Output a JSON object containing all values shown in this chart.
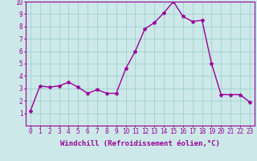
{
  "x": [
    0,
    1,
    2,
    3,
    4,
    5,
    6,
    7,
    8,
    9,
    10,
    11,
    12,
    13,
    14,
    15,
    16,
    17,
    18,
    19,
    20,
    21,
    22,
    23
  ],
  "y": [
    1.2,
    3.2,
    3.1,
    3.2,
    3.5,
    3.1,
    2.6,
    2.9,
    2.6,
    2.6,
    4.6,
    6.0,
    7.8,
    8.3,
    9.1,
    10.0,
    8.8,
    8.4,
    8.5,
    5.0,
    2.5,
    2.5,
    2.5,
    1.9
  ],
  "line_color": "#990099",
  "marker": "*",
  "marker_size": 3,
  "background_color": "#cce8e8",
  "grid_color": "#99cccc",
  "xlabel": "Windchill (Refroidissement éolien,°C)",
  "xlabel_color": "#990099",
  "tick_color": "#990099",
  "xlim": [
    -0.5,
    23.5
  ],
  "ylim": [
    0,
    10
  ],
  "yticks": [
    1,
    2,
    3,
    4,
    5,
    6,
    7,
    8,
    9,
    10
  ],
  "xticks": [
    0,
    1,
    2,
    3,
    4,
    5,
    6,
    7,
    8,
    9,
    10,
    11,
    12,
    13,
    14,
    15,
    16,
    17,
    18,
    19,
    20,
    21,
    22,
    23
  ],
  "tick_fontsize": 5.5,
  "xlabel_fontsize": 6.5,
  "line_width": 1.0
}
